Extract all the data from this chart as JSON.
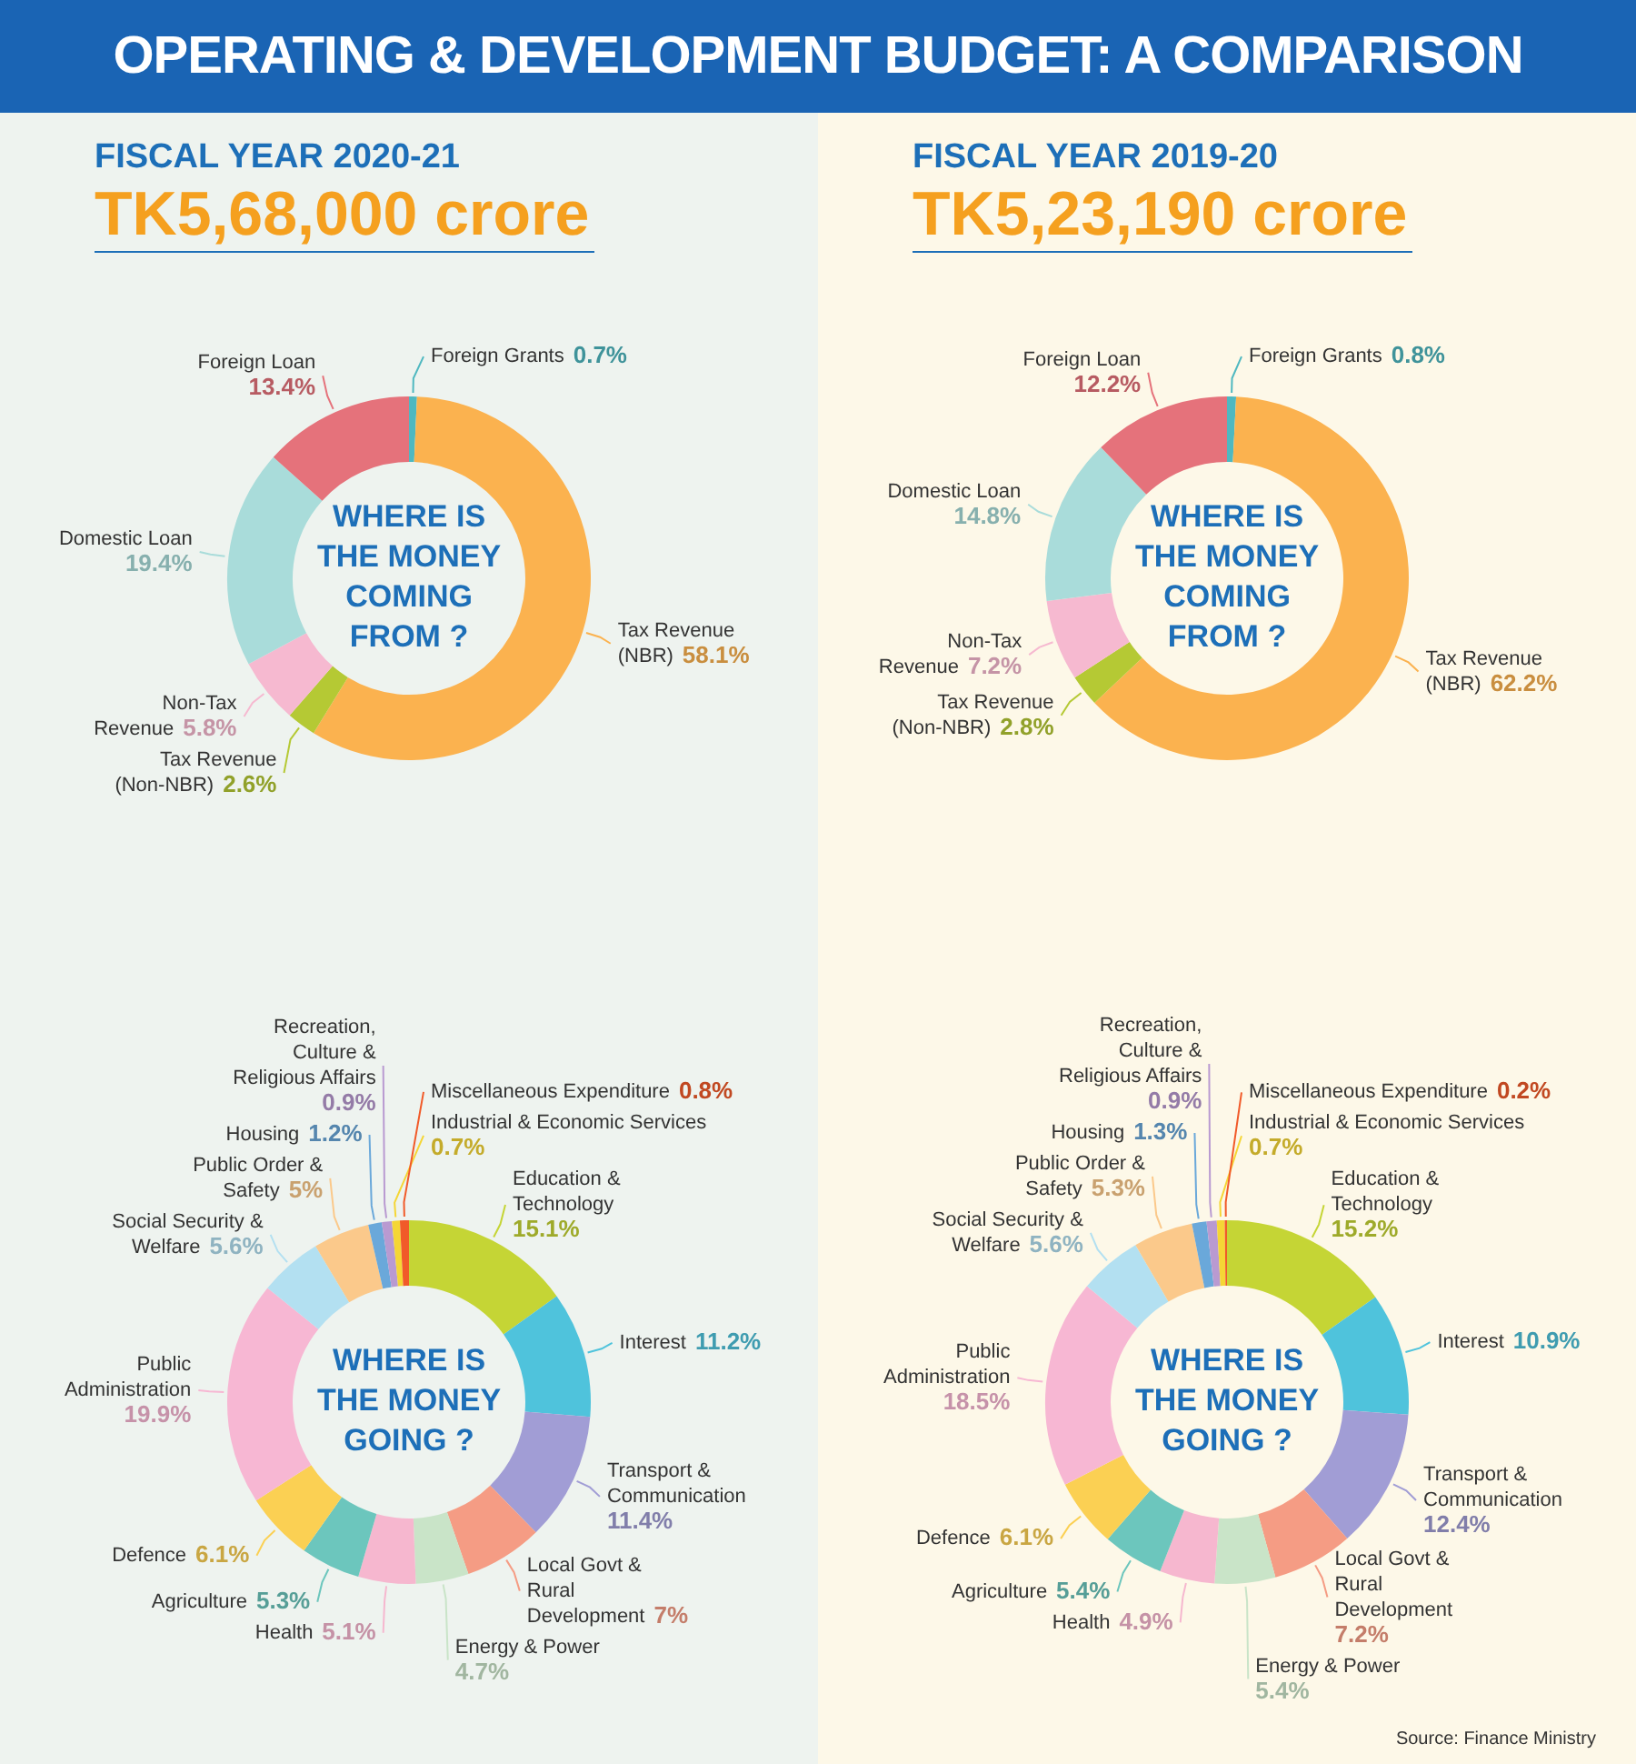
{
  "chart_data": [
    {
      "type": "donut",
      "title": "FISCAL YEAR 2020-21",
      "subtitle": "TK5,68,000 crore",
      "annotations": [
        "OPERATING & DEVELOPMENT BUDGET: A COMPARISON",
        "WHERE IS THE MONEY COMING FROM ?"
      ],
      "categories": [
        "Foreign Grants",
        "Tax Revenue (NBR)",
        "Tax Revenue (Non-NBR)",
        "Non-Tax Revenue",
        "Domestic Loan",
        "Foreign Loan"
      ],
      "values": [
        0.7,
        58.1,
        2.6,
        5.8,
        19.4,
        13.4
      ],
      "value_labels": [
        "0.7%",
        "58.1%",
        "2.6%",
        "5.8%",
        "19.4%",
        "13.4%"
      ],
      "colors": [
        "#4fb8c0",
        "#fbb24f",
        "#b5c934",
        "#f6b9d0",
        "#a9dcda",
        "#e5727b"
      ],
      "legend": false
    },
    {
      "type": "donut",
      "title": "FISCAL YEAR 2019-20",
      "subtitle": "TK5,23,190 crore",
      "annotations": [
        "WHERE IS THE MONEY COMING FROM ?"
      ],
      "categories": [
        "Foreign Grants",
        "Tax Revenue (NBR)",
        "Tax Revenue (Non-NBR)",
        "Non-Tax Revenue",
        "Domestic Loan",
        "Foreign Loan"
      ],
      "values": [
        0.8,
        62.2,
        2.8,
        7.2,
        14.8,
        12.2
      ],
      "value_labels": [
        "0.8%",
        "62.2%",
        "2.8%",
        "7.2%",
        "14.8%",
        "12.2%"
      ],
      "colors": [
        "#4fb8c0",
        "#fbb24f",
        "#b5c934",
        "#f6b9d0",
        "#a9dcda",
        "#e5727b"
      ],
      "legend": false
    },
    {
      "type": "donut",
      "annotations": [
        "WHERE IS THE MONEY GOING ?"
      ],
      "categories": [
        "Education & Technology",
        "Interest",
        "Transport & Communication",
        "Local Govt & Rural Development",
        "Energy & Power",
        "Health",
        "Agriculture",
        "Defence",
        "Public Administration",
        "Social Security & Welfare",
        "Public Order & Safety",
        "Housing",
        "Recreation, Culture & Religious Affairs",
        "Industrial & Economic Services",
        "Miscellaneous Expenditure"
      ],
      "values": [
        15.1,
        11.2,
        11.4,
        7,
        4.7,
        5.1,
        5.3,
        6.1,
        19.9,
        5.6,
        5,
        1.2,
        0.9,
        0.7,
        0.8
      ],
      "value_labels": [
        "15.1%",
        "11.2%",
        "11.4%",
        "7%",
        "4.7%",
        "5.1%",
        "5.3%",
        "6.1%",
        "19.9%",
        "5.6%",
        "5%",
        "1.2%",
        "0.9%",
        "0.7%",
        "0.8%"
      ],
      "colors": [
        "#c5d535",
        "#4fc3dc",
        "#a19dd5",
        "#f59c84",
        "#c9e4c8",
        "#f6b7cf",
        "#6cc6bd",
        "#fbd053",
        "#f7b7d3",
        "#b3e0f1",
        "#fbc98b",
        "#6aa8da",
        "#b99ad1",
        "#f5d635",
        "#f15a29"
      ],
      "legend": false
    },
    {
      "type": "donut",
      "annotations": [
        "WHERE IS THE MONEY GOING ?",
        "Source: Finance Ministry"
      ],
      "categories": [
        "Education & Technology",
        "Interest",
        "Transport & Communication",
        "Local Govt & Rural Development",
        "Energy & Power",
        "Health",
        "Agriculture",
        "Defence",
        "Public Administration",
        "Social Security & Welfare",
        "Public Order & Safety",
        "Housing",
        "Recreation, Culture & Religious Affairs",
        "Industrial & Economic Services",
        "Miscellaneous Expenditure"
      ],
      "values": [
        15.2,
        10.9,
        12.4,
        7.2,
        5.4,
        4.9,
        5.4,
        6.1,
        18.5,
        5.6,
        5.3,
        1.3,
        0.9,
        0.7,
        0.2
      ],
      "value_labels": [
        "15.2%",
        "10.9%",
        "12.4%",
        "7.2%",
        "5.4%",
        "4.9%",
        "5.4%",
        "6.1%",
        "18.5%",
        "5.6%",
        "5.3%",
        "1.3%",
        "0.9%",
        "0.7%",
        "0.2%"
      ],
      "colors": [
        "#c5d535",
        "#4fc3dc",
        "#a19dd5",
        "#f59c84",
        "#c9e4c8",
        "#f6b7cf",
        "#6cc6bd",
        "#fbd053",
        "#f7b7d3",
        "#b3e0f1",
        "#fbc98b",
        "#6aa8da",
        "#b99ad1",
        "#f5d635",
        "#f15a29"
      ],
      "legend": false
    }
  ]
}
